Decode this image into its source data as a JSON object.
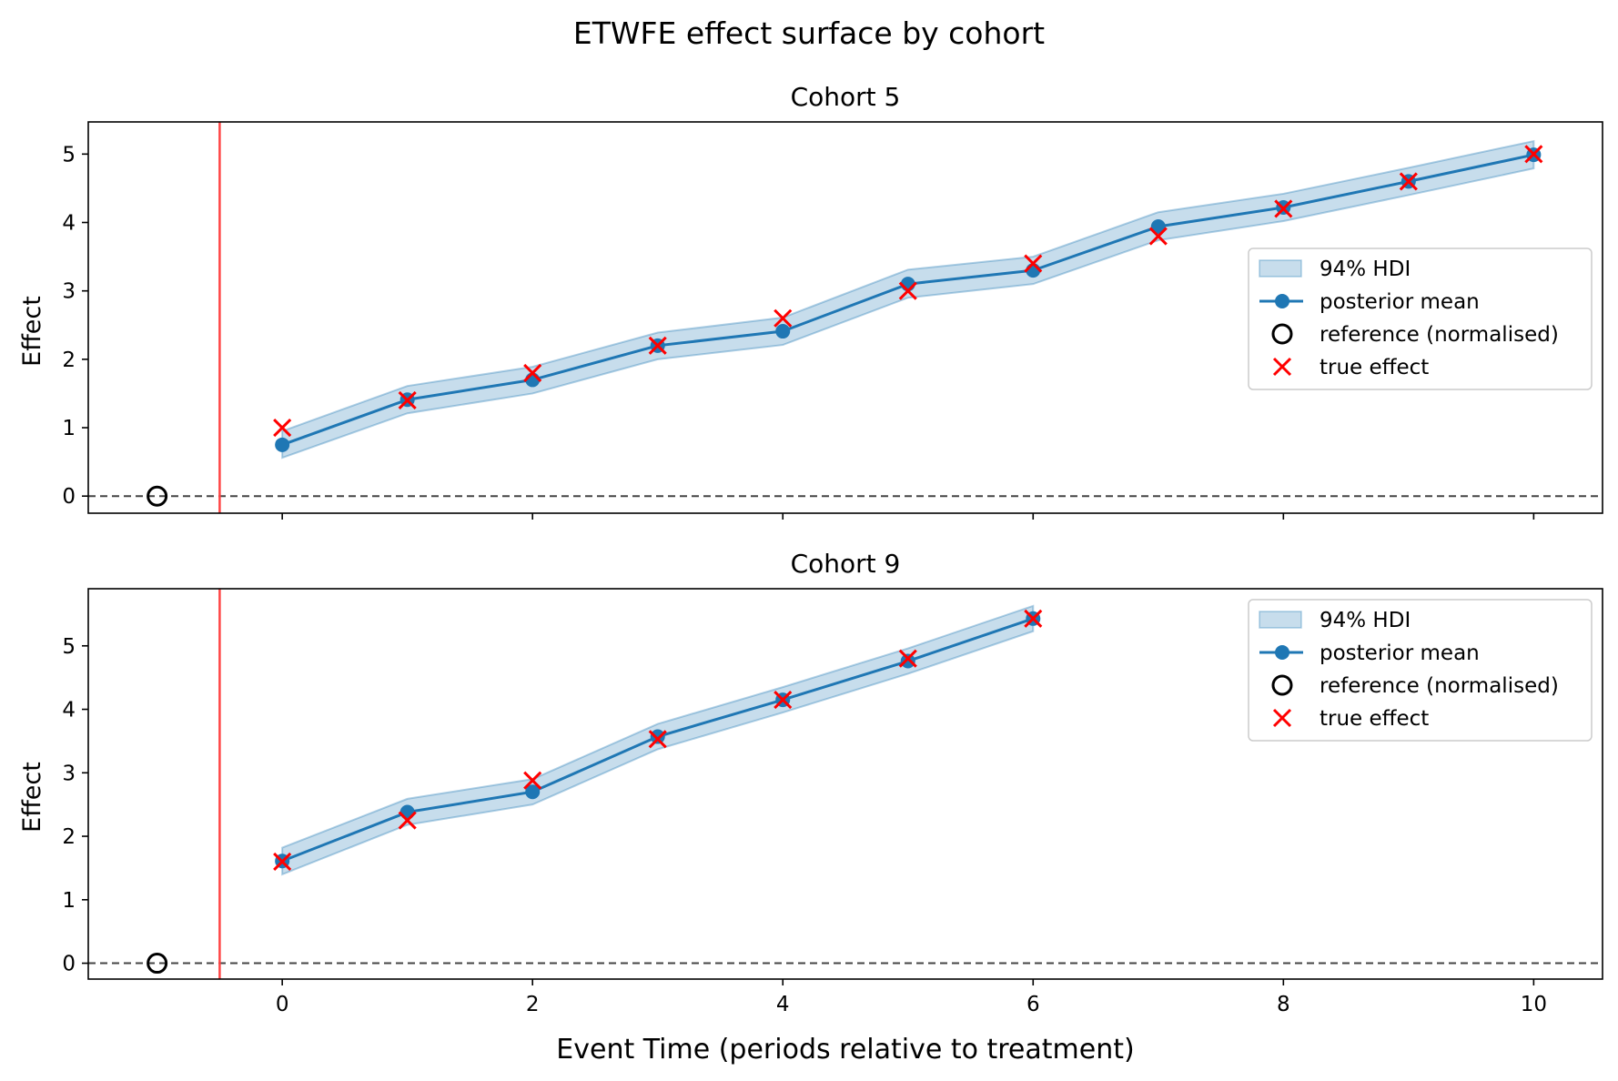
{
  "figure": {
    "title": "ETWFE effect surface by cohort",
    "xlabel": "Event Time (periods relative to treatment)"
  },
  "colors": {
    "line": "#1f77b4",
    "band": "#1f77b4",
    "true_marker": "#ff0000",
    "treatment_line": "#ff4444",
    "zero_line": "#444444",
    "reference": "#000000"
  },
  "chart_data": [
    {
      "type": "line",
      "title": "Cohort 5",
      "xlabel": "",
      "ylabel": "Effect",
      "xlim": [
        -1.55,
        10.55
      ],
      "ylim": [
        -0.25,
        5.47
      ],
      "xticks": [
        0,
        2,
        4,
        6,
        8,
        10
      ],
      "yticks": [
        0,
        1,
        2,
        3,
        4,
        5
      ],
      "show_xtick_labels": false,
      "treatment_line_x": -0.5,
      "zero_line_y": 0,
      "reference": {
        "x": -1,
        "y": 0
      },
      "legend_position": "center-right",
      "series": [
        {
          "name": "94% HDI",
          "kind": "band",
          "x": [
            0,
            1,
            2,
            3,
            4,
            5,
            6,
            7,
            8,
            9,
            10
          ],
          "lower": [
            0.56,
            1.21,
            1.5,
            2.0,
            2.21,
            2.9,
            3.1,
            3.74,
            4.02,
            4.4,
            4.79
          ],
          "upper": [
            0.95,
            1.61,
            1.89,
            2.39,
            2.61,
            3.31,
            3.5,
            4.15,
            4.42,
            4.8,
            5.19
          ]
        },
        {
          "name": "posterior mean",
          "kind": "line",
          "x": [
            0,
            1,
            2,
            3,
            4,
            5,
            6,
            7,
            8,
            9,
            10
          ],
          "y": [
            0.75,
            1.41,
            1.7,
            2.2,
            2.41,
            3.1,
            3.3,
            3.94,
            4.22,
            4.6,
            4.99
          ]
        },
        {
          "name": "reference (normalised)",
          "kind": "reference"
        },
        {
          "name": "true effect",
          "kind": "x",
          "x": [
            0,
            1,
            2,
            3,
            4,
            5,
            6,
            7,
            8,
            9,
            10
          ],
          "y": [
            1.0,
            1.4,
            1.8,
            2.2,
            2.6,
            3.0,
            3.4,
            3.8,
            4.2,
            4.6,
            5.0
          ]
        }
      ]
    },
    {
      "type": "line",
      "title": "Cohort 9",
      "xlabel": "Event Time (periods relative to treatment)",
      "ylabel": "Effect",
      "xlim": [
        -1.55,
        10.55
      ],
      "ylim": [
        -0.25,
        5.9
      ],
      "xticks": [
        0,
        2,
        4,
        6,
        8,
        10
      ],
      "yticks": [
        0,
        1,
        2,
        3,
        4,
        5
      ],
      "show_xtick_labels": true,
      "treatment_line_x": -0.5,
      "zero_line_y": 0,
      "reference": {
        "x": -1,
        "y": 0
      },
      "legend_position": "upper-right",
      "series": [
        {
          "name": "94% HDI",
          "kind": "band",
          "x": [
            0,
            1,
            2,
            3,
            4,
            5,
            6
          ],
          "lower": [
            1.4,
            2.18,
            2.5,
            3.37,
            3.95,
            4.56,
            5.23
          ],
          "upper": [
            1.82,
            2.59,
            2.9,
            3.77,
            4.35,
            4.96,
            5.63
          ]
        },
        {
          "name": "posterior mean",
          "kind": "line",
          "x": [
            0,
            1,
            2,
            3,
            4,
            5,
            6
          ],
          "y": [
            1.61,
            2.38,
            2.7,
            3.57,
            4.15,
            4.76,
            5.43
          ]
        },
        {
          "name": "reference (normalised)",
          "kind": "reference"
        },
        {
          "name": "true effect",
          "kind": "x",
          "x": [
            0,
            1,
            2,
            3,
            4,
            5,
            6
          ],
          "y": [
            1.6,
            2.25,
            2.88,
            3.53,
            4.15,
            4.8,
            5.43
          ]
        }
      ]
    }
  ]
}
